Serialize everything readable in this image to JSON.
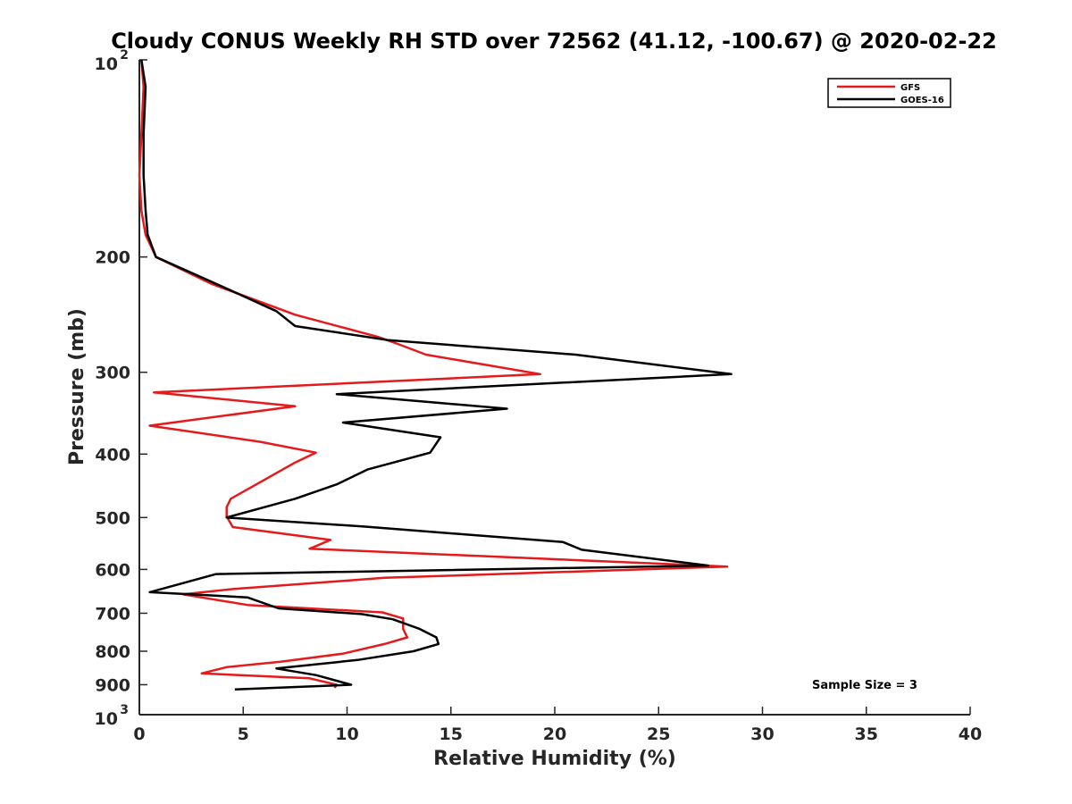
{
  "chart_data": {
    "type": "line",
    "title": "Cloudy CONUS Weekly RH STD over 72562 (41.12, -100.67) @ 2020-02-22",
    "xlabel": "Relative Humidity (%)",
    "ylabel": "Pressure (mb)",
    "xlim": [
      0,
      40
    ],
    "ylim": [
      100,
      1000
    ],
    "yscale": "log",
    "y_reversed": true,
    "grid": false,
    "legend_position": "top-right",
    "x_ticks": [
      "0",
      "5",
      "10",
      "15",
      "20",
      "25",
      "30",
      "35",
      "40"
    ],
    "x_tick_values": [
      0,
      5,
      10,
      15,
      20,
      25,
      30,
      35,
      40
    ],
    "y_ticks": [
      {
        "value": 100,
        "label": "10",
        "sup": "2"
      },
      {
        "value": 200,
        "label": "200",
        "sup": ""
      },
      {
        "value": 300,
        "label": "300",
        "sup": ""
      },
      {
        "value": 400,
        "label": "400",
        "sup": ""
      },
      {
        "value": 500,
        "label": "500",
        "sup": ""
      },
      {
        "value": 600,
        "label": "600",
        "sup": ""
      },
      {
        "value": 700,
        "label": "700",
        "sup": ""
      },
      {
        "value": 800,
        "label": "800",
        "sup": ""
      },
      {
        "value": 900,
        "label": "900",
        "sup": ""
      },
      {
        "value": 1000,
        "label": "10",
        "sup": "3"
      }
    ],
    "annotation": "Sample Size = 3",
    "series": [
      {
        "name": "GFS",
        "color": "#e41a1c",
        "points": [
          [
            0.1,
            100
          ],
          [
            0.2,
            110
          ],
          [
            0.1,
            130
          ],
          [
            0,
            150
          ],
          [
            0.1,
            170
          ],
          [
            0.3,
            185
          ],
          [
            0.8,
            200
          ],
          [
            3.5,
            220
          ],
          [
            7.5,
            245
          ],
          [
            11.5,
            265
          ],
          [
            12.5,
            272
          ],
          [
            13.8,
            282
          ],
          [
            19.3,
            302
          ],
          [
            0.7,
            322
          ],
          [
            7.5,
            338
          ],
          [
            0.5,
            362
          ],
          [
            5.8,
            383
          ],
          [
            8.5,
            398
          ],
          [
            7.5,
            412
          ],
          [
            5.9,
            440
          ],
          [
            4.4,
            468
          ],
          [
            4.2,
            482
          ],
          [
            4.2,
            498
          ],
          [
            4.5,
            517
          ],
          [
            9.2,
            541
          ],
          [
            8.2,
            558
          ],
          [
            28.3,
            594
          ],
          [
            11.8,
            618
          ],
          [
            4.5,
            643
          ],
          [
            2.1,
            655
          ],
          [
            5.2,
            680
          ],
          [
            11.7,
            698
          ],
          [
            12.7,
            713
          ],
          [
            12.7,
            740
          ],
          [
            12.9,
            762
          ],
          [
            11.8,
            780
          ],
          [
            9.8,
            807
          ],
          [
            6.8,
            830
          ],
          [
            4.2,
            846
          ],
          [
            3.0,
            865
          ],
          [
            8.2,
            880
          ],
          [
            9.5,
            900
          ],
          [
            9.4,
            910
          ]
        ]
      },
      {
        "name": "GOES-16",
        "color": "#000000",
        "points": [
          [
            0.1,
            100
          ],
          [
            0.3,
            110
          ],
          [
            0.2,
            130
          ],
          [
            0.2,
            150
          ],
          [
            0.3,
            170
          ],
          [
            0.4,
            185
          ],
          [
            0.8,
            200
          ],
          [
            4.0,
            222
          ],
          [
            6.6,
            242
          ],
          [
            7.5,
            255
          ],
          [
            12.0,
            268
          ],
          [
            21.0,
            282
          ],
          [
            28.5,
            302
          ],
          [
            9.5,
            324
          ],
          [
            17.7,
            341
          ],
          [
            9.8,
            358
          ],
          [
            14.5,
            377
          ],
          [
            14.0,
            398
          ],
          [
            11.0,
            422
          ],
          [
            9.5,
            445
          ],
          [
            7.5,
            468
          ],
          [
            4.2,
            500
          ],
          [
            10.8,
            516
          ],
          [
            20.4,
            545
          ],
          [
            21.3,
            560
          ],
          [
            27.4,
            592
          ],
          [
            3.7,
            610
          ],
          [
            0.5,
            650
          ],
          [
            5.2,
            662
          ],
          [
            6.7,
            688
          ],
          [
            10.7,
            702
          ],
          [
            12.2,
            715
          ],
          [
            13.5,
            740
          ],
          [
            14.3,
            762
          ],
          [
            14.4,
            780
          ],
          [
            13.2,
            800
          ],
          [
            10.5,
            825
          ],
          [
            6.6,
            850
          ],
          [
            8.5,
            870
          ],
          [
            10.2,
            900
          ],
          [
            4.6,
            915
          ]
        ]
      }
    ]
  }
}
